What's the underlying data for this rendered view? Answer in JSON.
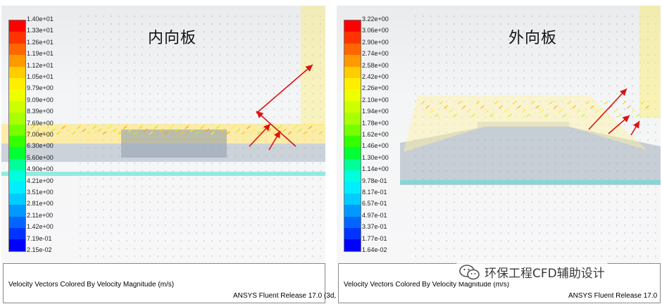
{
  "panels": [
    {
      "title": "内向板",
      "colorbar": {
        "labels": [
          "1.40e+01",
          "1.33e+01",
          "1.26e+01",
          "1.19e+01",
          "1.12e+01",
          "1.05e+01",
          "9.79e+00",
          "9.09e+00",
          "8.39e+00",
          "7.69e+00",
          "7.00e+00",
          "6.30e+00",
          "5.60e+00",
          "4.90e+00",
          "4.21e+00",
          "3.51e+00",
          "2.81e+00",
          "2.11e+00",
          "1.42e+00",
          "7.19e-01",
          "2.15e-02"
        ]
      },
      "caption": "Velocity Vectors Colored By Velocity Magnitude (m/s)",
      "release": "ANSYS Fluent Release 17.0 (3d,"
    },
    {
      "title": "外向板",
      "colorbar": {
        "labels": [
          "3.22e+00",
          "3.06e+00",
          "2.90e+00",
          "2.74e+00",
          "2.58e+00",
          "2.42e+00",
          "2.26e+00",
          "2.10e+00",
          "1.94e+00",
          "1.78e+00",
          "1.62e+00",
          "1.46e+00",
          "1.30e+00",
          "1.14e+00",
          "9.78e-01",
          "8.17e-01",
          "6.57e-01",
          "4.97e-01",
          "3.37e-01",
          "1.77e-01",
          "1.64e-02"
        ]
      },
      "caption": "Velocity Vectors Colored By Velocity Magnitude (m/s)",
      "release": "ANSYS Fluent Release 17.0"
    }
  ],
  "colormap": [
    "#ff0000",
    "#ff3300",
    "#ff6600",
    "#ff9900",
    "#ffcc00",
    "#ffee00",
    "#eeff00",
    "#ccff00",
    "#aaff00",
    "#77ff00",
    "#33ff00",
    "#00ff33",
    "#00ff99",
    "#00ffdd",
    "#00eeff",
    "#00ccff",
    "#0099ff",
    "#0066ff",
    "#0033ff",
    "#0000ff",
    "#0000cc"
  ],
  "watermark": {
    "text": "环保工程CFD辅助设计",
    "icon": "wechat-icon"
  }
}
